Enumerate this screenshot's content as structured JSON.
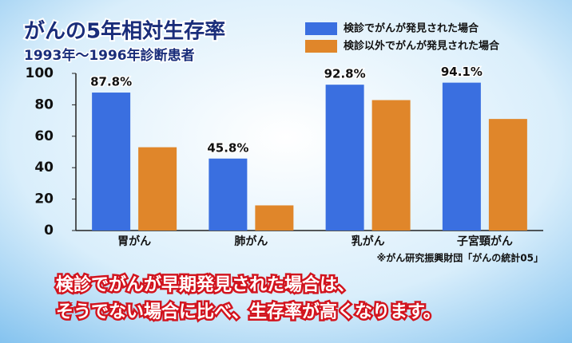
{
  "chart_data": {
    "type": "bar",
    "title": "がんの5年相対生存率",
    "subtitle": "1993年～1996年診断患者",
    "categories": [
      "胃がん",
      "肺がん",
      "乳がん",
      "子宮頸がん"
    ],
    "series": [
      {
        "name": "検診でがんが発見された場合",
        "color": "#3a6fe0",
        "values": [
          87.8,
          45.8,
          92.8,
          94.1
        ],
        "value_labels": [
          "87.8%",
          "45.8%",
          "92.8%",
          "94.1%"
        ]
      },
      {
        "name": "検診以外でがんが発見された場合",
        "color": "#e0862a",
        "values": [
          53,
          16,
          83,
          71
        ]
      }
    ],
    "ylim": [
      0,
      100
    ],
    "yticks": [
      0,
      20,
      40,
      60,
      80,
      100
    ],
    "source": "※がん研究振興財団「がんの統計05」",
    "caption": [
      "検診でがんが早期発見された場合は、",
      "そうでない場合に比べ、生存率が高くなります。"
    ]
  }
}
